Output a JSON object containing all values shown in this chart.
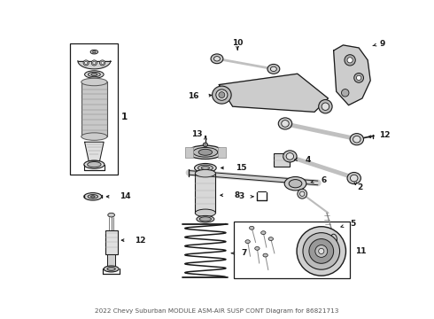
{
  "title": "2022 Chevy Suburban MODULE ASM-AIR SUSP CONT Diagram for 86821713",
  "background_color": "#ffffff",
  "line_color": "#1a1a1a",
  "fig_width": 4.9,
  "fig_height": 3.6,
  "dpi": 100
}
